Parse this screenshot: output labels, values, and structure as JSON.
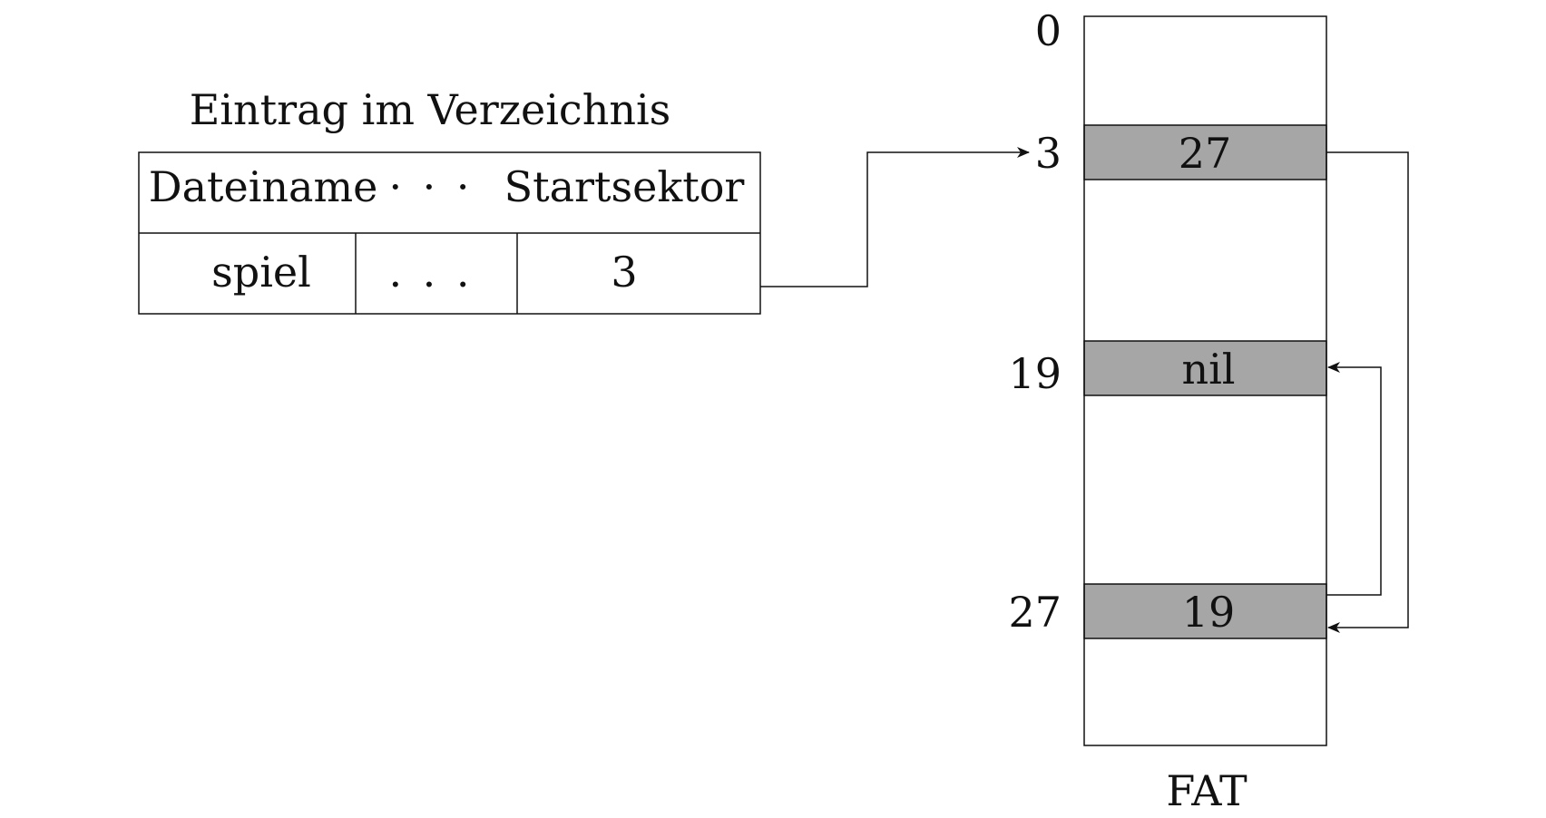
{
  "directory_entry": {
    "title": "Eintrag im Verzeichnis",
    "headers": {
      "filename": "Dateiname",
      "ellipsis": "· · ·",
      "start_sector": "Startsektor"
    },
    "row": {
      "filename": "spiel",
      "ellipsis": ". . .",
      "start_sector": "3"
    }
  },
  "fat": {
    "caption": "FAT",
    "index_labels": {
      "top": "0",
      "a": "3",
      "b": "19",
      "c": "27"
    },
    "entries": {
      "a_value": "27",
      "b_value": "nil",
      "c_value": "19"
    }
  },
  "colors": {
    "stroke": "#111111",
    "filled_cell": "#a6a6a6",
    "background": "#ffffff"
  }
}
